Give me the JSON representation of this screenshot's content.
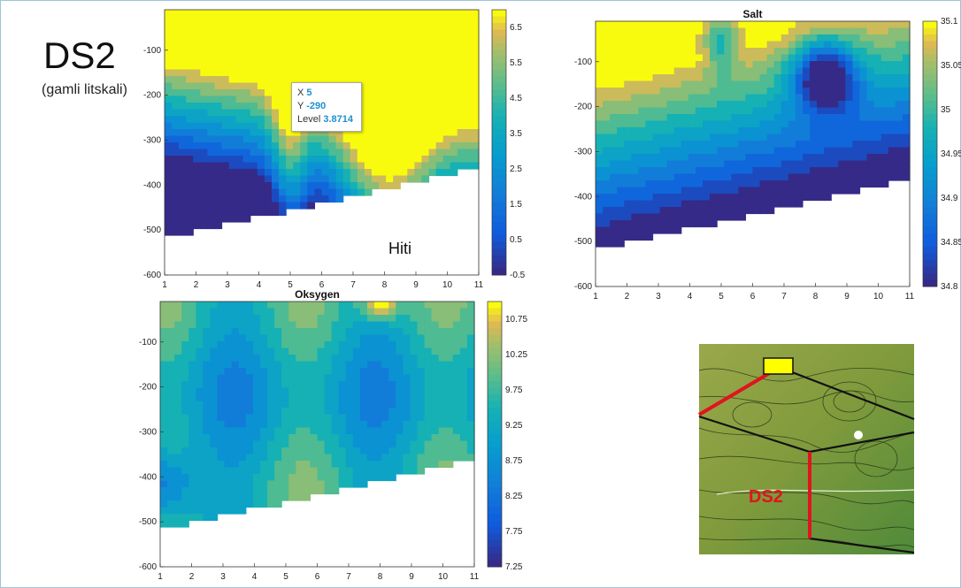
{
  "slide": {
    "title": "DS2",
    "subtitle": "(gamli litskali)"
  },
  "annotation": {
    "hiti_label": "Hiti"
  },
  "tooltip": {
    "x_label": "X",
    "x_value": "5",
    "y_label": "Y",
    "y_value": "-290",
    "level_label": "Level",
    "level_value": "3.8714"
  },
  "map": {
    "label": "DS2",
    "accent_color": "#e0141e",
    "marker_color": "#ffff00"
  },
  "chart_data": [
    {
      "type": "heatmap",
      "title": "",
      "x_ticks": [
        "1",
        "2",
        "3",
        "4",
        "5",
        "6",
        "7",
        "8",
        "9",
        "10",
        "11"
      ],
      "y_ticks": [
        "-100",
        "-200",
        "-300",
        "-400",
        "-500",
        "-600"
      ],
      "colorbar_ticks": [
        "6.5",
        "5.5",
        "4.5",
        "3.5",
        "2.5",
        "1.5",
        "0.5",
        "-0.5"
      ],
      "xlim": [
        1,
        11
      ],
      "ylim": [
        -600,
        -10
      ],
      "colorbar_range": [
        -0.5,
        7
      ]
    },
    {
      "type": "heatmap",
      "title": "Salt",
      "x_ticks": [
        "1",
        "2",
        "3",
        "4",
        "5",
        "6",
        "7",
        "8",
        "9",
        "10",
        "11"
      ],
      "y_ticks": [
        "-100",
        "-200",
        "-300",
        "-400",
        "-500",
        "-600"
      ],
      "colorbar_ticks": [
        "35.1",
        "35.05",
        "35",
        "34.95",
        "34.9",
        "34.85",
        "34.8"
      ],
      "xlim": [
        1,
        11
      ],
      "ylim": [
        -600,
        -10
      ],
      "colorbar_range": [
        34.8,
        35.1
      ]
    },
    {
      "type": "heatmap",
      "title": "Oksygen",
      "x_ticks": [
        "1",
        "2",
        "3",
        "4",
        "5",
        "6",
        "7",
        "8",
        "9",
        "10",
        "11"
      ],
      "y_ticks": [
        "-100",
        "-200",
        "-300",
        "-400",
        "-500",
        "-600"
      ],
      "colorbar_ticks": [
        "10.75",
        "10.25",
        "9.75",
        "9.25",
        "8.75",
        "8.25",
        "7.75",
        "7.25"
      ],
      "xlim": [
        1,
        11
      ],
      "ylim": [
        -600,
        -10
      ],
      "colorbar_range": [
        7.25,
        11
      ]
    }
  ]
}
